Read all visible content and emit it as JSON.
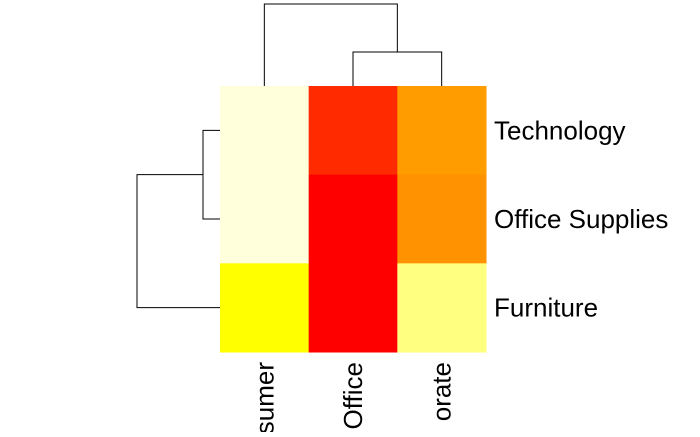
{
  "chart_data": {
    "type": "heatmap",
    "rows": [
      "Technology",
      "Office Supplies",
      "Furniture"
    ],
    "columns": [
      "Consumer",
      "Home Office",
      "Corporate"
    ],
    "column_labels_visible": [
      "sumer",
      "Office",
      "orate"
    ],
    "cell_colors": [
      [
        "#ffffdc",
        "#ff2a00",
        "#ff9c00"
      ],
      [
        "#ffffdc",
        "#ff0000",
        "#ff9200"
      ],
      [
        "#ffff00",
        "#ff0000",
        "#ffff80"
      ]
    ],
    "row_dendrogram": true,
    "column_dendrogram": true,
    "grid": false,
    "legend": "none"
  }
}
